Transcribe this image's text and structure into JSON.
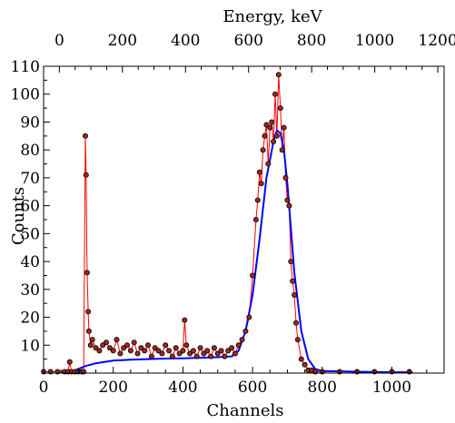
{
  "chart_data": {
    "type": "scatter",
    "xlabel": "Channels",
    "x2label": "Energy, keV",
    "ylabel": "Counts",
    "xlim": [
      0,
      1150
    ],
    "x2lim": [
      -50,
      1220
    ],
    "ylim": [
      0,
      110
    ],
    "x_ticks": [
      0,
      200,
      400,
      600,
      800,
      1000
    ],
    "x2_ticks": [
      0,
      200,
      400,
      600,
      800,
      1000,
      1200
    ],
    "y_ticks": [
      10,
      20,
      30,
      40,
      50,
      60,
      70,
      80,
      90,
      100,
      110
    ],
    "grid": false,
    "colors": {
      "points": "#a0281e",
      "data_line": "#ff0000",
      "fit_line": "#0000ff"
    },
    "series": [
      {
        "role": "measured",
        "x": [
          0,
          20,
          40,
          60,
          70,
          75,
          80,
          90,
          100,
          110,
          115,
          120,
          122,
          125,
          128,
          130,
          135,
          140,
          150,
          160,
          170,
          180,
          190,
          200,
          210,
          220,
          230,
          240,
          250,
          260,
          270,
          280,
          290,
          300,
          310,
          320,
          330,
          340,
          350,
          360,
          370,
          380,
          390,
          400,
          405,
          410,
          420,
          430,
          440,
          450,
          460,
          470,
          480,
          490,
          500,
          510,
          520,
          530,
          540,
          550,
          560,
          570,
          580,
          590,
          600,
          610,
          615,
          620,
          625,
          630,
          635,
          640,
          645,
          650,
          655,
          660,
          665,
          670,
          675,
          680,
          685,
          690,
          695,
          700,
          705,
          710,
          715,
          720,
          725,
          730,
          740,
          750,
          760,
          770,
          780,
          800,
          850,
          900,
          950,
          1000,
          1050
        ],
        "y": [
          0.5,
          0.5,
          0.5,
          0.5,
          0.5,
          4,
          0.5,
          0.5,
          0.5,
          0.5,
          0.5,
          85,
          71,
          36,
          22,
          15,
          10,
          12,
          9,
          8,
          10,
          11,
          9,
          8,
          12,
          7,
          9,
          10,
          8,
          11,
          7,
          9,
          8,
          10,
          6,
          9,
          8,
          7,
          10,
          8,
          6,
          9,
          7,
          8,
          19,
          10,
          7,
          8,
          6,
          9,
          7,
          8,
          6,
          9,
          7,
          8,
          6,
          8,
          9,
          7,
          10,
          12,
          15,
          20,
          35,
          55,
          62,
          72,
          68,
          80,
          85,
          89,
          75,
          88,
          90,
          83,
          100,
          85,
          107,
          95,
          80,
          88,
          70,
          62,
          60,
          40,
          33,
          28,
          18,
          12,
          5,
          3,
          1,
          1,
          0.5,
          0.5,
          0.5,
          0.5,
          0.5,
          0.5,
          0.5
        ]
      },
      {
        "role": "fit",
        "x": [
          80,
          100,
          120,
          150,
          200,
          250,
          300,
          350,
          400,
          450,
          500,
          540,
          560,
          580,
          600,
          620,
          640,
          660,
          670,
          680,
          690,
          700,
          710,
          720,
          740,
          760,
          780,
          800,
          900,
          1000,
          1060
        ],
        "y": [
          0.5,
          1.5,
          2.5,
          3.5,
          4.5,
          4.8,
          5.0,
          5.2,
          5.3,
          5.5,
          5.7,
          6.0,
          8,
          15,
          28,
          48,
          70,
          83,
          87,
          86,
          80,
          68,
          52,
          36,
          15,
          5,
          1.5,
          0.7,
          0.5,
          0.3,
          0.2
        ]
      }
    ]
  }
}
